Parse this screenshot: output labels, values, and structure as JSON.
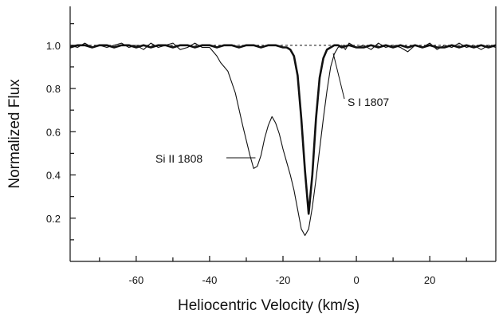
{
  "chart_data": {
    "type": "line",
    "title": "",
    "xlabel": "Heliocentric Velocity (km/s)",
    "ylabel": "Normalized Flux",
    "xlim": [
      -78,
      38
    ],
    "ylim": [
      0.0,
      1.18
    ],
    "xticks": [
      -60,
      -40,
      -20,
      0,
      20
    ],
    "xtick_labels": [
      "-60",
      "-40",
      "-20",
      "0",
      "20"
    ],
    "yticks": [
      0.2,
      0.4,
      0.6,
      0.8,
      1.0
    ],
    "ytick_labels": [
      "0.2",
      "0.4",
      "0.6",
      "0.8",
      "1.0"
    ],
    "grid": false,
    "continuum_level": 1.0,
    "series": [
      {
        "name": "Si II 1808",
        "label": "Si II 1808",
        "line_weight": "thin",
        "label_anchor": [
          -27.5,
          0.45
        ],
        "x": [
          -78,
          -76,
          -74,
          -72,
          -70,
          -68,
          -66,
          -64,
          -62,
          -60,
          -58,
          -56,
          -54,
          -52,
          -50,
          -48,
          -46,
          -44,
          -42,
          -40,
          -39,
          -38,
          -37,
          -35,
          -33,
          -31,
          -29,
          -28,
          -27,
          -26,
          -25,
          -24,
          -23,
          -22,
          -21,
          -20,
          -19,
          -18,
          -17,
          -16,
          -15,
          -14,
          -13,
          -12,
          -11,
          -10,
          -9,
          -8,
          -7,
          -6,
          -5,
          -4,
          -3,
          -2,
          0,
          2,
          4,
          6,
          8,
          10,
          12,
          14,
          16,
          18,
          20,
          22,
          24,
          26,
          28,
          30,
          32,
          34,
          36,
          38
        ],
        "y": [
          1.0,
          0.99,
          1.01,
          0.99,
          1.0,
          0.99,
          1.0,
          1.01,
          0.99,
          1.0,
          0.98,
          1.01,
          0.99,
          1.0,
          1.01,
          0.98,
          0.99,
          1.01,
          0.99,
          0.99,
          0.97,
          0.95,
          0.92,
          0.88,
          0.78,
          0.63,
          0.49,
          0.43,
          0.44,
          0.49,
          0.57,
          0.63,
          0.67,
          0.64,
          0.59,
          0.52,
          0.46,
          0.4,
          0.33,
          0.24,
          0.15,
          0.12,
          0.15,
          0.25,
          0.38,
          0.52,
          0.66,
          0.79,
          0.9,
          0.96,
          0.99,
          1.0,
          0.98,
          1.01,
          0.99,
          1.0,
          0.98,
          1.01,
          0.99,
          1.0,
          0.99,
          0.97,
          1.0,
          0.99,
          1.01,
          0.98,
          1.0,
          0.99,
          1.01,
          0.99,
          1.0,
          0.98,
          1.0,
          0.99
        ]
      },
      {
        "name": "S I 1807",
        "label": "S I 1807",
        "line_weight": "thick",
        "label_anchor": [
          -5.0,
          0.97
        ],
        "x": [
          -78,
          -76,
          -74,
          -72,
          -70,
          -68,
          -66,
          -64,
          -62,
          -60,
          -58,
          -56,
          -54,
          -52,
          -50,
          -48,
          -46,
          -44,
          -42,
          -40,
          -38,
          -36,
          -34,
          -32,
          -30,
          -28,
          -26,
          -24,
          -22,
          -20,
          -19,
          -18,
          -17,
          -16,
          -15,
          -14,
          -13,
          -12,
          -11,
          -10,
          -9,
          -8,
          -7,
          -6,
          -5,
          -4,
          -2,
          0,
          2,
          4,
          6,
          8,
          10,
          12,
          14,
          16,
          18,
          20,
          22,
          24,
          26,
          28,
          30,
          32,
          34,
          36,
          38
        ],
        "y": [
          0.99,
          1.0,
          1.0,
          0.99,
          1.0,
          1.0,
          0.99,
          1.0,
          1.0,
          0.99,
          1.0,
          0.99,
          1.0,
          1.0,
          0.99,
          1.0,
          1.0,
          0.99,
          1.0,
          1.0,
          0.99,
          1.0,
          1.0,
          0.99,
          1.0,
          1.0,
          0.99,
          1.0,
          1.0,
          0.99,
          0.99,
          0.98,
          0.95,
          0.86,
          0.66,
          0.42,
          0.22,
          0.4,
          0.66,
          0.85,
          0.94,
          0.98,
          0.99,
          1.0,
          1.0,
          0.99,
          1.0,
          0.99,
          0.99,
          1.0,
          0.99,
          1.0,
          0.99,
          1.0,
          0.99,
          1.0,
          0.99,
          1.0,
          0.99,
          0.99,
          1.0,
          0.99,
          1.0,
          0.99,
          1.0,
          0.99,
          1.0
        ]
      }
    ]
  }
}
